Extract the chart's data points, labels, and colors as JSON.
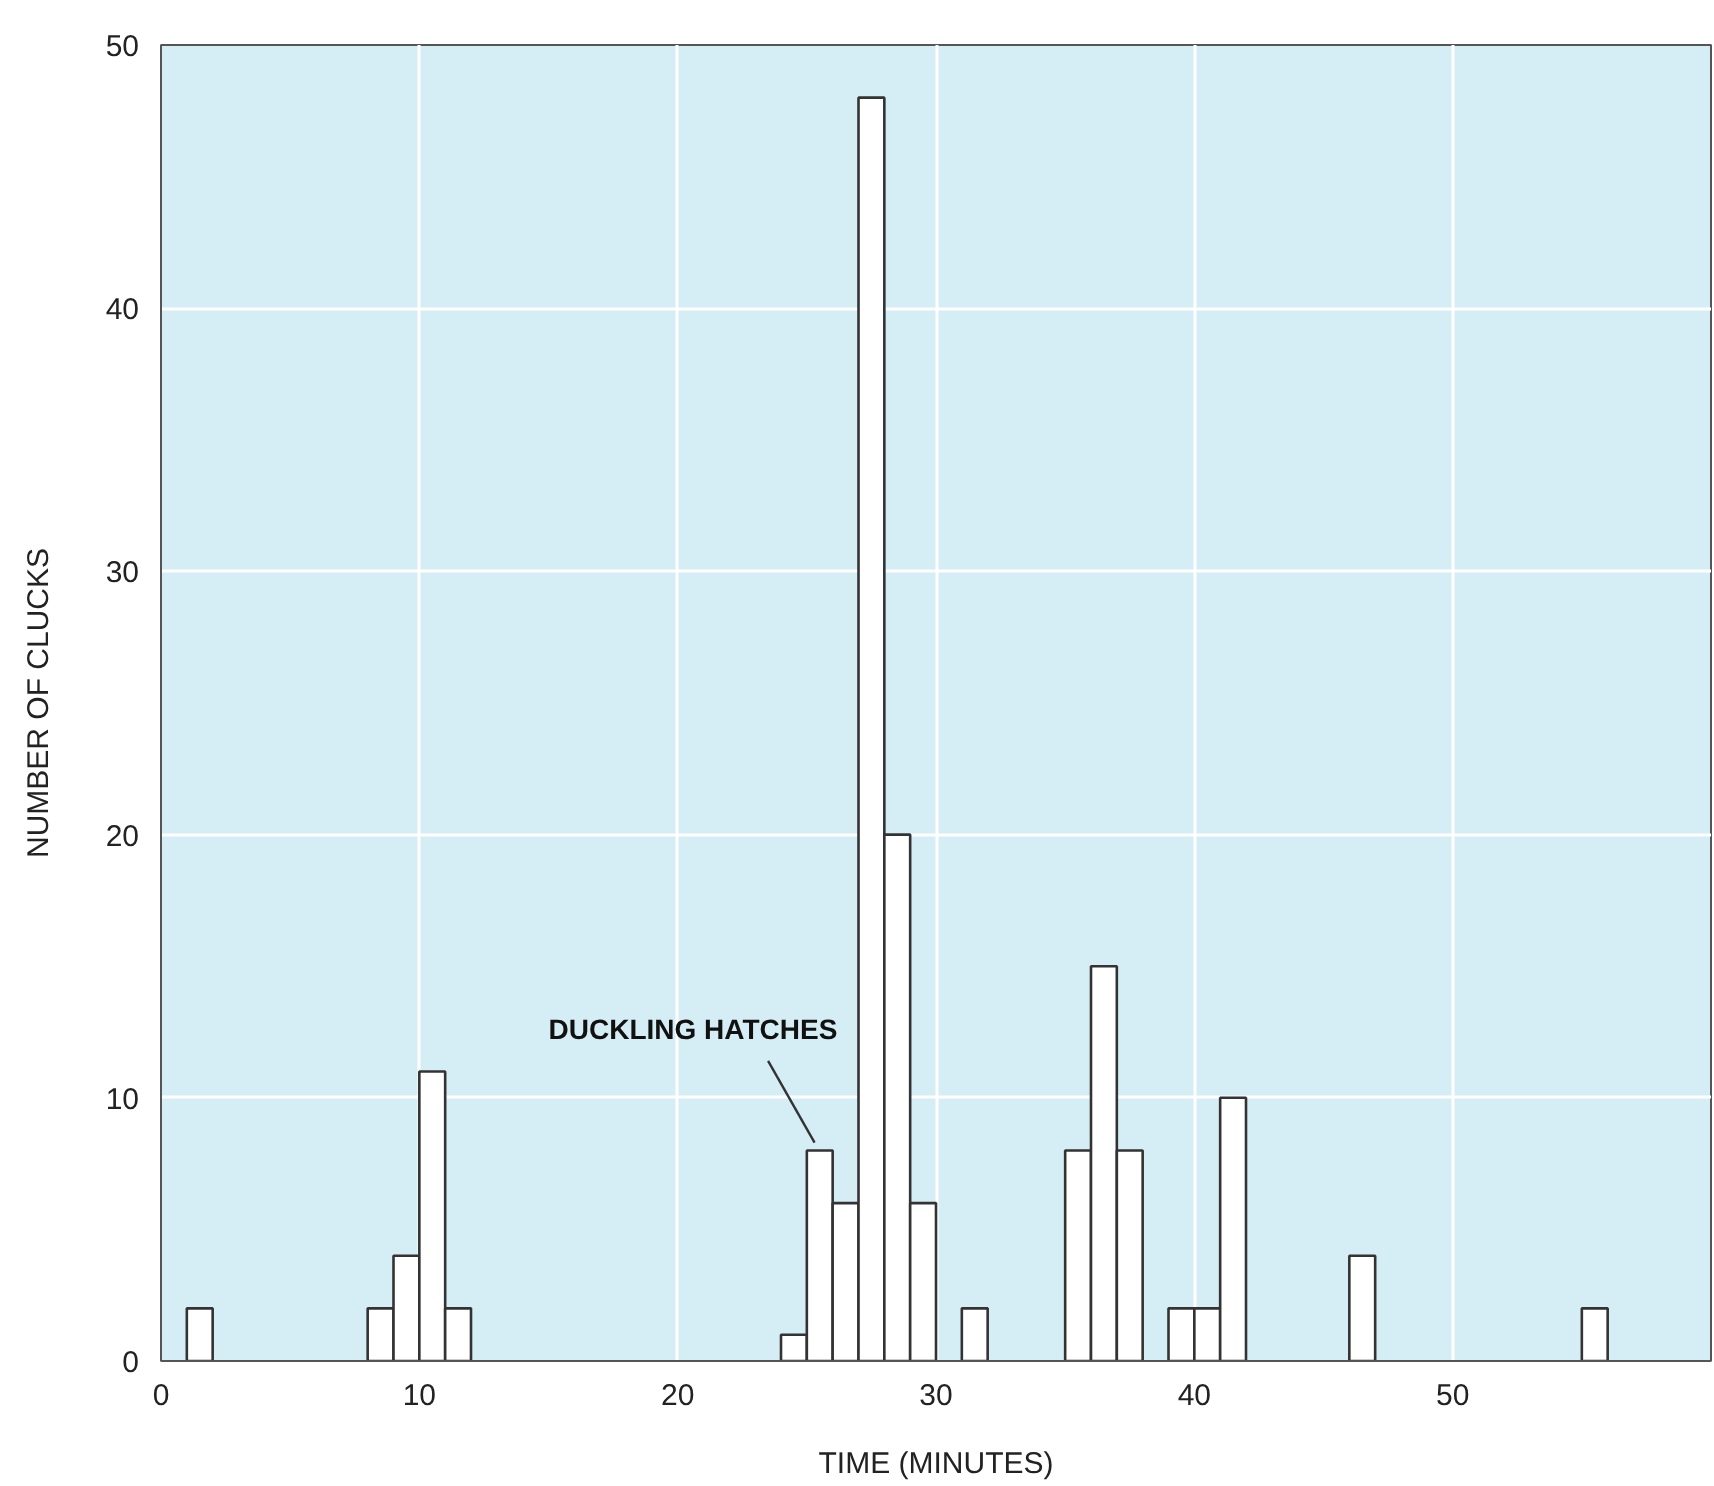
{
  "chart_data": {
    "type": "histogram",
    "xlabel": "TIME (MINUTES)",
    "ylabel": "NUMBER OF CLUCKS",
    "bins": [
      0,
      1,
      2,
      3,
      4,
      5,
      6,
      7,
      8,
      9,
      10,
      11,
      12,
      13,
      14,
      15,
      16,
      17,
      18,
      19,
      20,
      21,
      22,
      23,
      24,
      25,
      26,
      27,
      28,
      29,
      30,
      31,
      32,
      33,
      34,
      35,
      36,
      37,
      38,
      39,
      40,
      41,
      42,
      43,
      44,
      45,
      46,
      47,
      48,
      49,
      50,
      51,
      52,
      53,
      54,
      55,
      56,
      57,
      58,
      59,
      60
    ],
    "values": [
      0,
      2,
      0,
      0,
      0,
      0,
      0,
      0,
      2,
      4,
      11,
      2,
      0,
      0,
      0,
      0,
      0,
      0,
      0,
      0,
      0,
      0,
      0,
      0,
      1,
      8,
      6,
      48,
      20,
      6,
      0,
      2,
      0,
      0,
      0,
      8,
      15,
      8,
      0,
      2,
      2,
      10,
      0,
      0,
      0,
      0,
      4,
      0,
      0,
      0,
      0,
      0,
      0,
      0,
      0,
      2,
      0,
      0,
      0,
      0
    ],
    "color": "#ffffff",
    "xlim": [
      0,
      60
    ],
    "ylim": [
      0,
      50
    ],
    "xticks": [
      0,
      10,
      20,
      30,
      40,
      50
    ],
    "yticks": [
      0,
      10,
      20,
      30,
      40,
      50
    ],
    "grid": true,
    "annotations": [
      {
        "text": "DUCKLING HATCHES",
        "x": 25.5,
        "y": 8
      }
    ]
  }
}
